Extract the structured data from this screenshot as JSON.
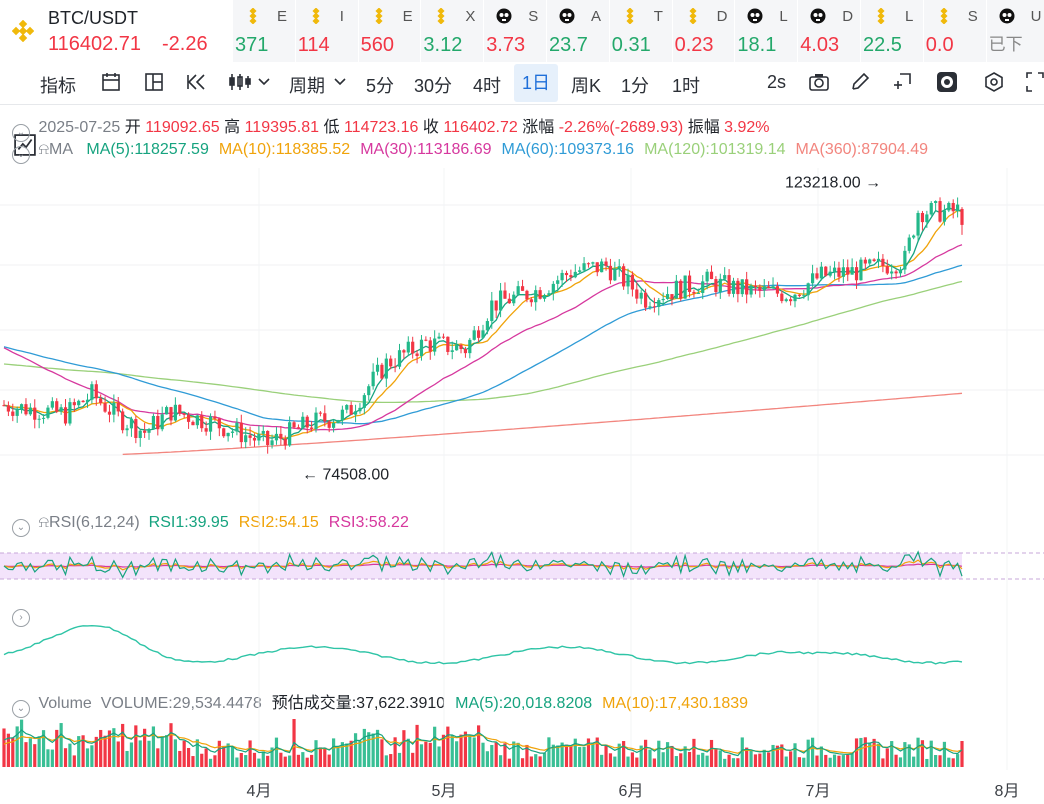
{
  "ticker": {
    "symbol": "BTC/USDT",
    "price": "116402.71",
    "change": "-2.26",
    "others": [
      {
        "letter": "E",
        "value": "371",
        "color": "#23a86b",
        "icon": "binance-icon"
      },
      {
        "letter": "I",
        "value": "114",
        "color": "#f23645",
        "icon": "binance-icon"
      },
      {
        "letter": "E",
        "value": "560",
        "color": "#f23645",
        "icon": "binance-icon"
      },
      {
        "letter": "X",
        "value": "3.12",
        "color": "#23a86b",
        "icon": "binance-icon"
      },
      {
        "letter": "S",
        "value": "3.73",
        "color": "#f23645",
        "icon": "skull-icon"
      },
      {
        "letter": "A",
        "value": "23.7",
        "color": "#23a86b",
        "icon": "skull-icon"
      },
      {
        "letter": "T",
        "value": "0.31",
        "color": "#23a86b",
        "icon": "binance-icon"
      },
      {
        "letter": "D",
        "value": "0.23",
        "color": "#f23645",
        "icon": "binance-icon"
      },
      {
        "letter": "L",
        "value": "18.1",
        "color": "#23a86b",
        "icon": "skull-icon"
      },
      {
        "letter": "D",
        "value": "4.03",
        "color": "#f23645",
        "icon": "skull-icon"
      },
      {
        "letter": "L",
        "value": "22.5",
        "color": "#23a86b",
        "icon": "binance-icon"
      },
      {
        "letter": "S",
        "value": "0.0",
        "color": "#f23645",
        "icon": "binance-icon"
      },
      {
        "letter": "U",
        "value": "已下",
        "color": "#888888",
        "icon": "skull-icon"
      }
    ]
  },
  "toolbar": {
    "indicator": "指标",
    "period": "周期",
    "intervals": [
      "5分",
      "30分",
      "4时",
      "1日",
      "周K",
      "1分",
      "1时"
    ],
    "selected": "1日",
    "refresh": "2s"
  },
  "info": {
    "date": "2025-07-25",
    "open_label": "开",
    "open": "119092.65",
    "high_label": "高",
    "high": "119395.81",
    "low_label": "低",
    "low": "114723.16",
    "close_label": "收",
    "close": "116402.72",
    "chg_label": "涨幅",
    "chg": "-2.26%(-2689.93)",
    "amp_label": "振幅",
    "amp": "3.92%"
  },
  "ma": {
    "label": "MA",
    "items": [
      {
        "text": "MA(5):118257.59",
        "color": "#16a37f"
      },
      {
        "text": "MA(10):118385.52",
        "color": "#f0a30a"
      },
      {
        "text": "MA(30):113186.69",
        "color": "#d6389e"
      },
      {
        "text": "MA(60):109373.16",
        "color": "#2f9bd6"
      },
      {
        "text": "MA(120):101319.14",
        "color": "#9ad07a"
      },
      {
        "text": "MA(360):87904.49",
        "color": "#f2857e"
      }
    ]
  },
  "rsi": {
    "label": "RSI(6,12,24)",
    "items": [
      {
        "text": "RSI1:39.95",
        "color": "#16a37f"
      },
      {
        "text": "RSI2:54.15",
        "color": "#f0a30a"
      },
      {
        "text": "RSI3:58.22",
        "color": "#d6389e"
      }
    ]
  },
  "volume": {
    "label": "Volume",
    "items": [
      {
        "text": "VOLUME:29,534.4478",
        "color": "#7a7f87"
      },
      {
        "text": "预估成交量:37,622.3910",
        "color": "#1f2329"
      },
      {
        "text": "MA(5):20,018.8208",
        "color": "#16a37f"
      },
      {
        "text": "MA(10):17,430.1839",
        "color": "#f0a30a"
      }
    ]
  },
  "colors": {
    "up": "#23b88a",
    "down": "#f23645"
  },
  "chart_data": {
    "type": "candlestick",
    "x_labels": [
      "4月",
      "5月",
      "6月",
      "7月",
      "8月"
    ],
    "ylim": [
      70000,
      126000
    ],
    "high_marker": "123218.00",
    "low_marker": "74508.00",
    "high_value": 123218,
    "low_value": 74508
  }
}
